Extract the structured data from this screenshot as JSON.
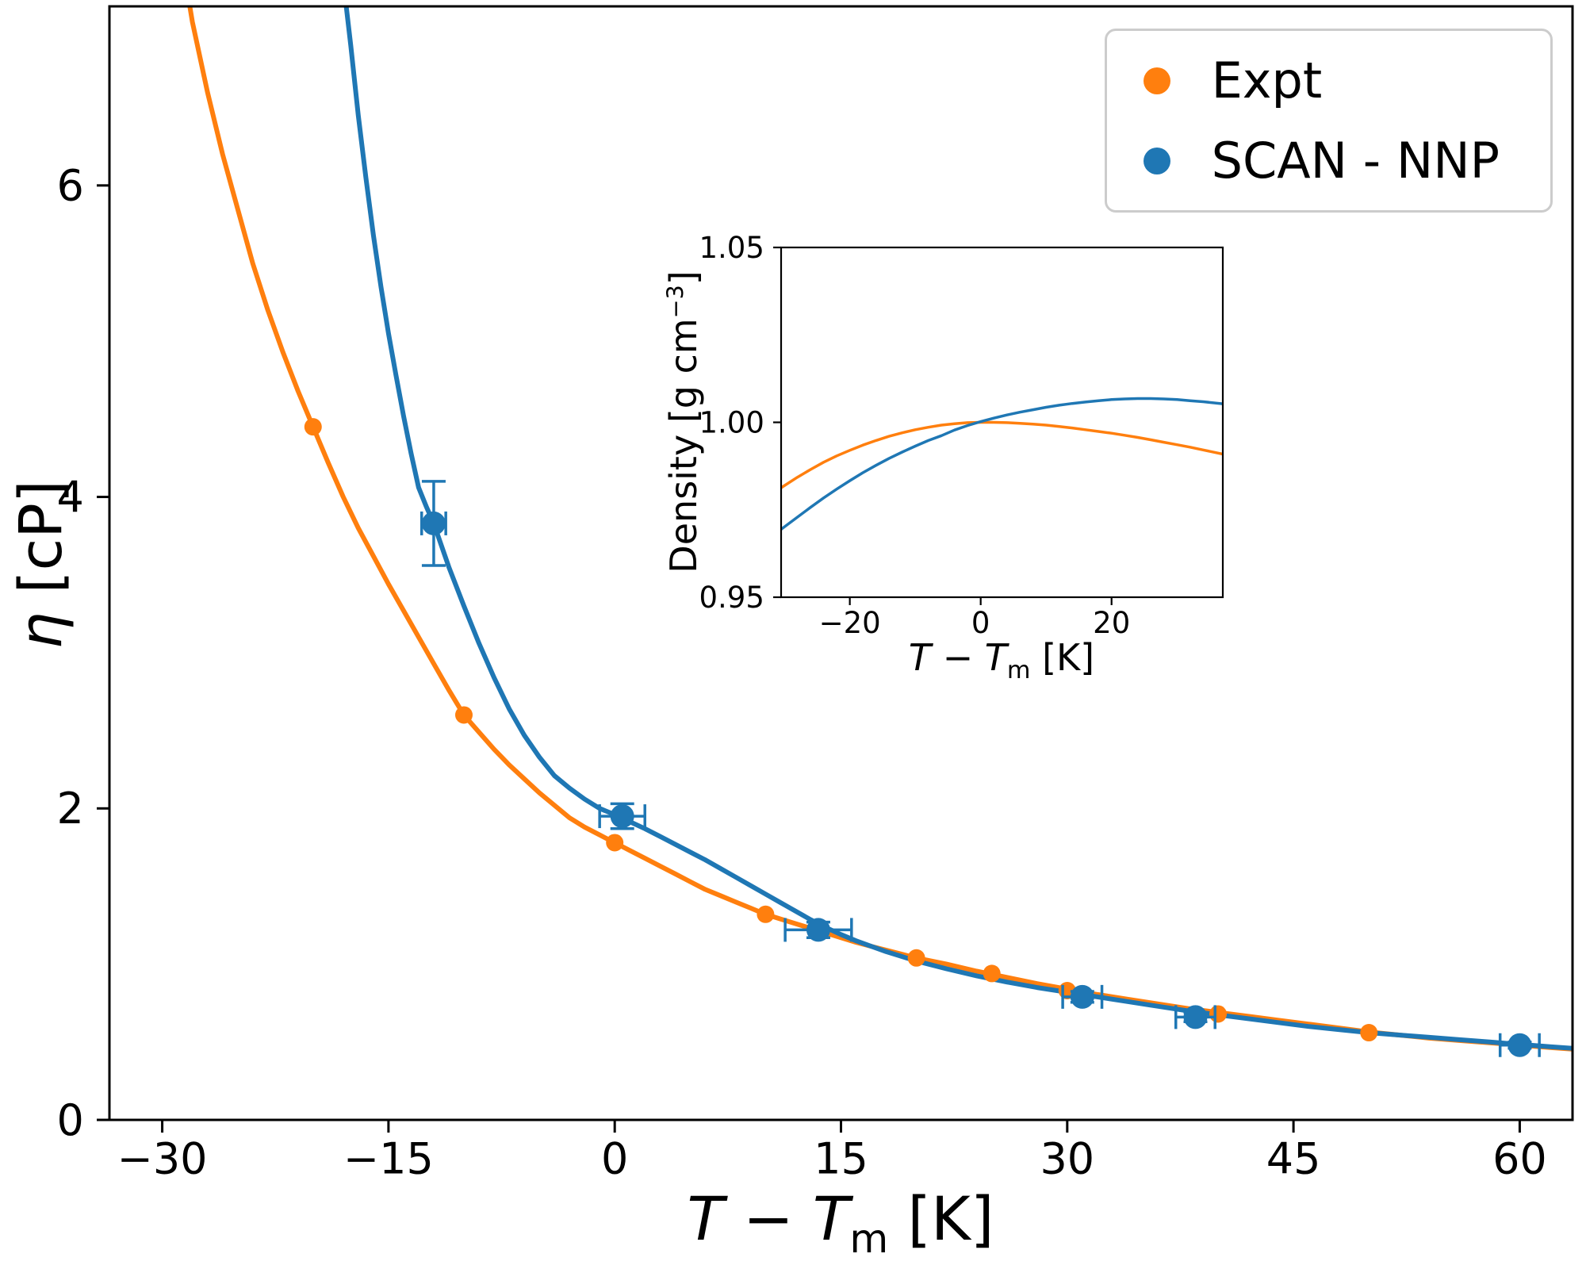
{
  "legend": {
    "items": [
      {
        "label": "Expt",
        "color": "#ff7f0e"
      },
      {
        "label": "SCAN - NNP",
        "color": "#1f77b4"
      }
    ]
  },
  "labels": {
    "main_ylabel": {
      "symbol": "η",
      "unit": " [cP]"
    },
    "main_xlabel": {
      "t1": "T",
      "op": " − ",
      "t2": "T",
      "sub": "m",
      "unit": " [K]"
    },
    "inset_ylabel": {
      "prefix": "Density [g cm",
      "sup": "−3",
      "suffix": "]"
    },
    "inset_xlabel": {
      "t1": "T",
      "op": " − ",
      "t2": "T",
      "sub": "m",
      "unit": " [K]"
    }
  },
  "chart_data": [
    {
      "type": "line+scatter",
      "title": "",
      "xlabel": "T − Tm [K]",
      "ylabel": "η [cP]",
      "xlim": [
        -33.5,
        63.5
      ],
      "ylim": [
        0,
        7.15
      ],
      "xticks": [
        -30,
        -15,
        0,
        15,
        30,
        45,
        60
      ],
      "yticks": [
        0,
        2,
        4,
        6
      ],
      "grid": false,
      "legend_position": "upper right",
      "series": [
        {
          "name": "Expt",
          "color": "#ff7f0e",
          "curve": [
            [
              -28.6,
              7.4
            ],
            [
              -28,
              7.05
            ],
            [
              -27,
              6.6
            ],
            [
              -26,
              6.2
            ],
            [
              -25,
              5.85
            ],
            [
              -24,
              5.5
            ],
            [
              -23,
              5.2
            ],
            [
              -22,
              4.93
            ],
            [
              -21,
              4.68
            ],
            [
              -20,
              4.45
            ],
            [
              -19,
              4.22
            ],
            [
              -18,
              4.0
            ],
            [
              -17,
              3.8
            ],
            [
              -16,
              3.62
            ],
            [
              -15,
              3.44
            ],
            [
              -14,
              3.27
            ],
            [
              -13,
              3.1
            ],
            [
              -12,
              2.93
            ],
            [
              -11,
              2.76
            ],
            [
              -10,
              2.6
            ],
            [
              -9,
              2.49
            ],
            [
              -8,
              2.38
            ],
            [
              -7,
              2.28
            ],
            [
              -6,
              2.19
            ],
            [
              -5,
              2.1
            ],
            [
              -4,
              2.02
            ],
            [
              -3,
              1.94
            ],
            [
              -2,
              1.88
            ],
            [
              -1,
              1.83
            ],
            [
              0,
              1.78
            ],
            [
              1,
              1.73
            ],
            [
              2,
              1.68
            ],
            [
              3,
              1.63
            ],
            [
              4,
              1.58
            ],
            [
              5,
              1.53
            ],
            [
              6,
              1.48
            ],
            [
              7,
              1.44
            ],
            [
              8,
              1.4
            ],
            [
              9,
              1.36
            ],
            [
              10,
              1.32
            ],
            [
              11,
              1.29
            ],
            [
              12,
              1.26
            ],
            [
              13,
              1.23
            ],
            [
              14,
              1.2
            ],
            [
              15,
              1.17
            ],
            [
              16,
              1.14
            ],
            [
              17,
              1.115
            ],
            [
              18,
              1.09
            ],
            [
              19,
              1.065
            ],
            [
              20,
              1.04
            ],
            [
              22,
              1.0
            ],
            [
              24,
              0.955
            ],
            [
              26,
              0.915
            ],
            [
              28,
              0.875
            ],
            [
              30,
              0.84
            ],
            [
              32,
              0.805
            ],
            [
              34,
              0.775
            ],
            [
              36,
              0.745
            ],
            [
              38,
              0.715
            ],
            [
              40,
              0.69
            ],
            [
              42,
              0.665
            ],
            [
              44,
              0.64
            ],
            [
              46,
              0.615
            ],
            [
              48,
              0.59
            ],
            [
              50,
              0.565
            ],
            [
              52,
              0.545
            ],
            [
              54,
              0.525
            ],
            [
              56,
              0.51
            ],
            [
              58,
              0.495
            ],
            [
              60,
              0.48
            ],
            [
              62,
              0.465
            ],
            [
              63.5,
              0.455
            ]
          ],
          "points": [
            [
              -20,
              4.45
            ],
            [
              -10,
              2.6
            ],
            [
              0,
              1.78
            ],
            [
              10,
              1.32
            ],
            [
              20,
              1.04
            ],
            [
              25,
              0.94
            ],
            [
              30,
              0.83
            ],
            [
              40,
              0.68
            ],
            [
              50,
              0.56
            ],
            [
              60,
              0.48
            ]
          ]
        },
        {
          "name": "SCAN - NNP",
          "color": "#1f77b4",
          "curve": [
            [
              -18.1,
              7.4
            ],
            [
              -17.5,
              6.9
            ],
            [
              -17,
              6.45
            ],
            [
              -16.5,
              6.05
            ],
            [
              -16,
              5.68
            ],
            [
              -15.5,
              5.35
            ],
            [
              -15,
              5.05
            ],
            [
              -14.5,
              4.78
            ],
            [
              -14,
              4.52
            ],
            [
              -13.5,
              4.28
            ],
            [
              -13,
              4.06
            ],
            [
              -12.5,
              3.94
            ],
            [
              -12,
              3.83
            ],
            [
              -11,
              3.55
            ],
            [
              -10,
              3.3
            ],
            [
              -9,
              3.06
            ],
            [
              -8,
              2.84
            ],
            [
              -7,
              2.64
            ],
            [
              -6,
              2.47
            ],
            [
              -5,
              2.33
            ],
            [
              -4,
              2.21
            ],
            [
              -3,
              2.13
            ],
            [
              -2,
              2.06
            ],
            [
              -1,
              2.0
            ],
            [
              0,
              1.96
            ],
            [
              1,
              1.915
            ],
            [
              2,
              1.87
            ],
            [
              3,
              1.82
            ],
            [
              4,
              1.77
            ],
            [
              5,
              1.72
            ],
            [
              6,
              1.67
            ],
            [
              7,
              1.615
            ],
            [
              8,
              1.56
            ],
            [
              9,
              1.505
            ],
            [
              10,
              1.45
            ],
            [
              11,
              1.395
            ],
            [
              12,
              1.34
            ],
            [
              13,
              1.285
            ],
            [
              14,
              1.235
            ],
            [
              15,
              1.19
            ],
            [
              16,
              1.15
            ],
            [
              17,
              1.115
            ],
            [
              18,
              1.08
            ],
            [
              19,
              1.05
            ],
            [
              20,
              1.02
            ],
            [
              22,
              0.97
            ],
            [
              24,
              0.925
            ],
            [
              26,
              0.885
            ],
            [
              28,
              0.85
            ],
            [
              30,
              0.82
            ],
            [
              32,
              0.79
            ],
            [
              34,
              0.76
            ],
            [
              36,
              0.73
            ],
            [
              38,
              0.7
            ],
            [
              40,
              0.675
            ],
            [
              42,
              0.65
            ],
            [
              44,
              0.625
            ],
            [
              46,
              0.6
            ],
            [
              48,
              0.58
            ],
            [
              50,
              0.56
            ],
            [
              52,
              0.545
            ],
            [
              54,
              0.53
            ],
            [
              56,
              0.515
            ],
            [
              58,
              0.5
            ],
            [
              60,
              0.485
            ],
            [
              62,
              0.47
            ],
            [
              63.5,
              0.46
            ]
          ],
          "points": [
            [
              -12,
              3.83
            ],
            [
              0.5,
              1.95
            ],
            [
              13.5,
              1.22
            ],
            [
              31,
              0.79
            ],
            [
              38.5,
              0.66
            ],
            [
              60,
              0.48
            ]
          ],
          "yerr": [
            0.27,
            0.08,
            0.05,
            0.035,
            0.03,
            0.02
          ],
          "xerr": [
            0.8,
            1.5,
            2.2,
            1.3,
            1.3,
            1.3
          ]
        }
      ]
    },
    {
      "type": "line",
      "title": "",
      "xlabel": "T − Tm [K]",
      "ylabel": "Density [g cm−3]",
      "xlim": [
        -30.5,
        37
      ],
      "ylim": [
        0.95,
        1.05
      ],
      "xticks": [
        -20,
        0,
        20
      ],
      "yticks": [
        0.95,
        1.0,
        1.05
      ],
      "grid": false,
      "series": [
        {
          "name": "Expt",
          "color": "#ff7f0e",
          "curve": [
            [
              -30.5,
              0.9813
            ],
            [
              -28,
              0.9843
            ],
            [
              -26,
              0.9865
            ],
            [
              -24,
              0.9886
            ],
            [
              -22,
              0.9904
            ],
            [
              -20,
              0.992
            ],
            [
              -18,
              0.9935
            ],
            [
              -16,
              0.9948
            ],
            [
              -14,
              0.996
            ],
            [
              -12,
              0.997
            ],
            [
              -10,
              0.9979
            ],
            [
              -8,
              0.9986
            ],
            [
              -6,
              0.9992
            ],
            [
              -4,
              0.9996
            ],
            [
              -2,
              0.9999
            ],
            [
              0,
              1.0
            ],
            [
              2,
              1.0
            ],
            [
              4,
              0.9999
            ],
            [
              6,
              0.9997
            ],
            [
              8,
              0.9995
            ],
            [
              10,
              0.9992
            ],
            [
              12,
              0.9988
            ],
            [
              14,
              0.9984
            ],
            [
              16,
              0.9979
            ],
            [
              18,
              0.9974
            ],
            [
              20,
              0.9969
            ],
            [
              22,
              0.9963
            ],
            [
              24,
              0.9957
            ],
            [
              26,
              0.995
            ],
            [
              28,
              0.9943
            ],
            [
              30,
              0.9936
            ],
            [
              32,
              0.9929
            ],
            [
              34,
              0.9921
            ],
            [
              37,
              0.9909
            ]
          ]
        },
        {
          "name": "SCAN - NNP",
          "color": "#1f77b4",
          "curve": [
            [
              -30.5,
              0.9694
            ],
            [
              -28,
              0.9729
            ],
            [
              -26,
              0.9757
            ],
            [
              -24,
              0.9784
            ],
            [
              -22,
              0.9809
            ],
            [
              -20,
              0.9833
            ],
            [
              -18,
              0.9856
            ],
            [
              -16,
              0.9877
            ],
            [
              -14,
              0.9897
            ],
            [
              -12,
              0.9915
            ],
            [
              -10,
              0.9932
            ],
            [
              -8,
              0.9948
            ],
            [
              -6,
              0.9962
            ],
            [
              -4,
              0.9978
            ],
            [
              -2,
              0.9991
            ],
            [
              0,
              1.0002
            ],
            [
              2,
              1.0012
            ],
            [
              4,
              1.0021
            ],
            [
              6,
              1.0029
            ],
            [
              8,
              1.0036
            ],
            [
              10,
              1.0043
            ],
            [
              12,
              1.0049
            ],
            [
              14,
              1.0054
            ],
            [
              16,
              1.0058
            ],
            [
              18,
              1.0062
            ],
            [
              20,
              1.0065
            ],
            [
              22,
              1.0067
            ],
            [
              24,
              1.0068
            ],
            [
              26,
              1.0068
            ],
            [
              28,
              1.0067
            ],
            [
              30,
              1.0065
            ],
            [
              32,
              1.0062
            ],
            [
              34,
              1.0059
            ],
            [
              37,
              1.0053
            ]
          ]
        }
      ]
    }
  ]
}
